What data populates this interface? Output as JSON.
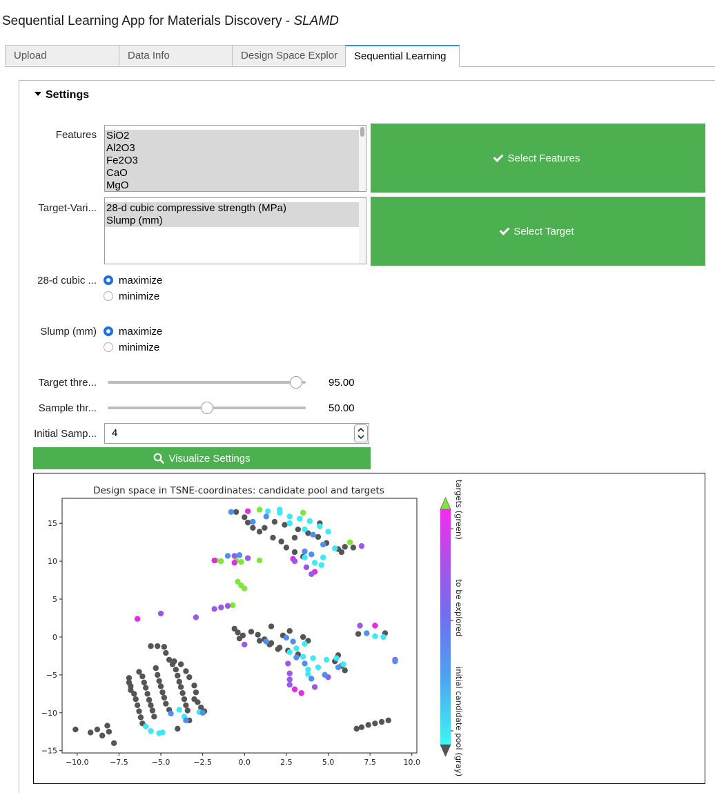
{
  "app": {
    "title": "Sequential Learning App for Materials Discovery - ",
    "title_italic": "SLAMD"
  },
  "tabs": [
    {
      "label": "Upload"
    },
    {
      "label": "Data Info"
    },
    {
      "label": "Design Space Explor"
    },
    {
      "label": "Sequential Learning"
    }
  ],
  "settings": {
    "header": "Settings",
    "features_label": "Features",
    "features_options": [
      "SiO2",
      "Al2O3",
      "Fe2O3",
      "CaO",
      "MgO"
    ],
    "select_features_button": "Select Features",
    "target_label": "Target-Vari...",
    "target_options": [
      "28-d cubic compressive strength (MPa)",
      "Slump (mm)"
    ],
    "select_target_button": "Select Target",
    "objective1_label": "28-d cubic ...",
    "objective2_label": "Slump (mm)",
    "maximize": "maximize",
    "minimize": "minimize",
    "target_threshold_label": "Target thre...",
    "target_threshold_value": "95.00",
    "target_threshold_level": 0.95,
    "sample_threshold_label": "Sample thr...",
    "sample_threshold_value": "50.00",
    "sample_threshold_level": 0.5,
    "initial_samples_label": "Initial Samp...",
    "initial_samples_value": "4",
    "visualize_button": "Visualize Settings",
    "accent_green": "#4caf50",
    "radio_blue": "#1e6fe0"
  },
  "chart_data": {
    "type": "scatter",
    "title": "Design space in TSNE-coordinates: candidate pool and targets",
    "xlabel": "",
    "ylabel": "",
    "xlim": [
      -10.9,
      10.3
    ],
    "ylim": [
      -15.3,
      18.3
    ],
    "xticks": [
      "−10.0",
      "−7.5",
      "−5.0",
      "−2.5",
      "0.0",
      "2.5",
      "5.0",
      "7.5",
      "10.0"
    ],
    "xtick_values": [
      -10,
      -7.5,
      -5,
      -2.5,
      0,
      2.5,
      5,
      7.5,
      10
    ],
    "yticks": [
      "15",
      "10",
      "5",
      "0",
      "−5",
      "−10",
      "−15"
    ],
    "ytick_values": [
      15,
      10,
      5,
      0,
      -5,
      -10,
      -15
    ],
    "colorbar_labels": [
      "targets (green)",
      "to be explored",
      "initial candidate pool (gray)"
    ],
    "colors": {
      "gray": "#555555",
      "green": "#7fe63a",
      "magenta": "#e629e6",
      "purple": "#9b59e8",
      "blue": "#4f8ff0",
      "cyan": "#3ee8f5"
    },
    "gray_points": [
      [
        -10.1,
        -12.2
      ],
      [
        -9.2,
        -12.6
      ],
      [
        -8.8,
        -12.2
      ],
      [
        -8.5,
        -13.0
      ],
      [
        -8.2,
        -11.7
      ],
      [
        -8.1,
        -12.5
      ],
      [
        -7.8,
        -14.0
      ],
      [
        -6.9,
        -5.4
      ],
      [
        -6.9,
        -6.0
      ],
      [
        -6.8,
        -6.5
      ],
      [
        -6.8,
        -7.0
      ],
      [
        -6.6,
        -7.5
      ],
      [
        -6.5,
        -8.2
      ],
      [
        -6.4,
        -9.0
      ],
      [
        -6.3,
        -9.8
      ],
      [
        -6.2,
        -10.6
      ],
      [
        -6.1,
        -11.4
      ],
      [
        -6.3,
        -4.6
      ],
      [
        -6.1,
        -5.2
      ],
      [
        -6.0,
        -6.0
      ],
      [
        -5.9,
        -6.7
      ],
      [
        -5.8,
        -7.5
      ],
      [
        -5.7,
        -8.3
      ],
      [
        -5.6,
        -9.0
      ],
      [
        -5.5,
        -9.7
      ],
      [
        -5.4,
        -10.5
      ],
      [
        -5.6,
        -1.2
      ],
      [
        -5.2,
        -1.2
      ],
      [
        -4.8,
        -1.3
      ],
      [
        -5.3,
        -4.1
      ],
      [
        -5.2,
        -5.0
      ],
      [
        -5.1,
        -5.8
      ],
      [
        -5.0,
        -6.5
      ],
      [
        -4.9,
        -7.3
      ],
      [
        -4.8,
        -8.0
      ],
      [
        -4.7,
        -8.8
      ],
      [
        -4.5,
        -9.6
      ],
      [
        -4.7,
        -2.1
      ],
      [
        -4.5,
        -3.0
      ],
      [
        -4.3,
        -3.6
      ],
      [
        -4.1,
        -4.3
      ],
      [
        -4.0,
        -5.1
      ],
      [
        -3.9,
        -5.9
      ],
      [
        -3.8,
        -6.6
      ],
      [
        -3.7,
        -7.4
      ],
      [
        -3.6,
        -8.2
      ],
      [
        -3.5,
        -9.0
      ],
      [
        -3.4,
        -9.7
      ],
      [
        -4.2,
        -3.2
      ],
      [
        -3.8,
        -3.6
      ],
      [
        -3.5,
        -4.5
      ],
      [
        -3.3,
        -5.3
      ],
      [
        -3.0,
        -6.4
      ],
      [
        -2.9,
        -7.3
      ],
      [
        -3.0,
        -8.2
      ],
      [
        -2.8,
        -8.6
      ],
      [
        -2.6,
        -9.3
      ],
      [
        -2.4,
        -9.8
      ],
      [
        -4.0,
        -12.1
      ],
      [
        -3.3,
        -11.0
      ],
      [
        -0.5,
        16.5
      ],
      [
        0.0,
        15.8
      ],
      [
        0.2,
        15.1
      ],
      [
        0.5,
        14.4
      ],
      [
        0.9,
        13.9
      ],
      [
        1.2,
        14.4
      ],
      [
        1.7,
        13.1
      ],
      [
        2.2,
        12.6
      ],
      [
        2.5,
        11.8
      ],
      [
        3.0,
        11.2
      ],
      [
        3.5,
        10.6
      ],
      [
        1.8,
        15.2
      ],
      [
        2.4,
        14.8
      ],
      [
        3.2,
        14.2
      ],
      [
        3.8,
        13.7
      ],
      [
        4.4,
        13.2
      ],
      [
        4.9,
        12.4
      ],
      [
        5.6,
        11.6
      ],
      [
        5.8,
        11.2
      ],
      [
        6.0,
        11.9
      ],
      [
        6.5,
        11.8
      ],
      [
        3.0,
        13.1
      ],
      [
        4.5,
        15.0
      ],
      [
        -0.6,
        1.1
      ],
      [
        -0.4,
        0.6
      ],
      [
        -0.1,
        0.2
      ],
      [
        -0.3,
        -0.2
      ],
      [
        0.4,
        0.7
      ],
      [
        0.8,
        0.3
      ],
      [
        1.2,
        -0.3
      ],
      [
        1.6,
        -0.8
      ],
      [
        2.1,
        -1.4
      ],
      [
        2.6,
        -1.8
      ],
      [
        3.2,
        -2.3
      ],
      [
        0.9,
        -0.5
      ],
      [
        1.5,
        -1.0
      ],
      [
        2.0,
        -1.6
      ],
      [
        1.6,
        1.4
      ],
      [
        2.3,
        0.2
      ],
      [
        2.7,
        0.8
      ],
      [
        3.5,
        0.0
      ],
      [
        3.8,
        -0.5
      ],
      [
        5.6,
        -2.4
      ],
      [
        5.4,
        -3.2
      ],
      [
        5.8,
        -3.8
      ],
      [
        6.0,
        -4.4
      ],
      [
        6.8,
        0.4
      ],
      [
        8.4,
        0.5
      ],
      [
        6.7,
        -12.1
      ],
      [
        7.0,
        -11.9
      ],
      [
        7.4,
        -11.6
      ],
      [
        7.8,
        -11.4
      ],
      [
        8.2,
        -11.2
      ],
      [
        8.6,
        -11.0
      ]
    ],
    "colored_points": [
      [
        0.2,
        16.6,
        "magenta"
      ],
      [
        0.9,
        16.8,
        "green"
      ],
      [
        3.5,
        16.4,
        "green"
      ],
      [
        6.3,
        12.5,
        "green"
      ],
      [
        -1.7,
        10.1,
        "green"
      ],
      [
        -1.4,
        10.0,
        "green"
      ],
      [
        -0.5,
        10.1,
        "green"
      ],
      [
        -0.2,
        9.9,
        "green"
      ],
      [
        0.9,
        10.1,
        "green"
      ],
      [
        -0.4,
        7.3,
        "green"
      ],
      [
        -0.2,
        6.8,
        "green"
      ],
      [
        0.0,
        6.4,
        "green"
      ],
      [
        -0.7,
        4.2,
        "green"
      ],
      [
        -1.8,
        10.1,
        "magenta"
      ],
      [
        -0.6,
        9.8,
        "magenta"
      ],
      [
        2.9,
        10.3,
        "magenta"
      ],
      [
        4.2,
        8.6,
        "magenta"
      ],
      [
        -6.4,
        2.4,
        "magenta"
      ],
      [
        -5.0,
        3.1,
        "purple"
      ],
      [
        -2.9,
        2.6,
        "purple"
      ],
      [
        -1.8,
        3.7,
        "purple"
      ],
      [
        -1.4,
        3.9,
        "purple"
      ],
      [
        -1.0,
        4.1,
        "purple"
      ],
      [
        -0.6,
        10.7,
        "purple"
      ],
      [
        0.2,
        10.4,
        "purple"
      ],
      [
        3.0,
        10.0,
        "purple"
      ],
      [
        3.7,
        9.2,
        "purple"
      ],
      [
        4.0,
        8.3,
        "purple"
      ],
      [
        6.9,
        1.5,
        "purple"
      ],
      [
        7.8,
        1.5,
        "magenta"
      ],
      [
        9.0,
        -3.0,
        "purple"
      ],
      [
        7.0,
        12.0,
        "purple"
      ],
      [
        3.4,
        -7.4,
        "magenta"
      ],
      [
        3.0,
        -6.9,
        "magenta"
      ],
      [
        5.0,
        -5.3,
        "purple"
      ],
      [
        4.2,
        -6.6,
        "purple"
      ],
      [
        0.0,
        -1.0,
        "purple"
      ],
      [
        1.3,
        -0.6,
        "blue"
      ],
      [
        2.5,
        -0.1,
        "blue"
      ],
      [
        2.9,
        -0.6,
        "blue"
      ],
      [
        2.6,
        -3.5,
        "purple"
      ],
      [
        2.7,
        -4.8,
        "purple"
      ],
      [
        2.7,
        -5.6,
        "purple"
      ],
      [
        2.7,
        -6.3,
        "purple"
      ],
      [
        0.5,
        15.2,
        "blue"
      ],
      [
        1.4,
        16.6,
        "cyan"
      ],
      [
        2.1,
        16.4,
        "cyan"
      ],
      [
        2.7,
        15.9,
        "cyan"
      ],
      [
        3.3,
        15.6,
        "cyan"
      ],
      [
        3.9,
        15.3,
        "cyan"
      ],
      [
        4.5,
        14.6,
        "cyan"
      ],
      [
        5.0,
        13.9,
        "cyan"
      ],
      [
        1.3,
        15.9,
        "blue"
      ],
      [
        2.1,
        16.8,
        "cyan"
      ],
      [
        -0.8,
        16.5,
        "blue"
      ],
      [
        2.7,
        15.0,
        "cyan"
      ],
      [
        3.6,
        14.2,
        "cyan"
      ],
      [
        4.1,
        13.5,
        "blue"
      ],
      [
        4.7,
        12.2,
        "blue"
      ],
      [
        3.6,
        11.3,
        "blue"
      ],
      [
        4.0,
        10.9,
        "blue"
      ],
      [
        4.7,
        10.5,
        "cyan"
      ],
      [
        3.6,
        10.5,
        "cyan"
      ],
      [
        4.2,
        9.8,
        "cyan"
      ],
      [
        4.6,
        9.5,
        "cyan"
      ],
      [
        5.4,
        11.7,
        "cyan"
      ],
      [
        -1.0,
        10.7,
        "blue"
      ],
      [
        -0.3,
        10.8,
        "blue"
      ],
      [
        -5.9,
        -11.8,
        "cyan"
      ],
      [
        -5.6,
        -12.4,
        "cyan"
      ],
      [
        -5.1,
        -12.7,
        "cyan"
      ],
      [
        -4.9,
        -12.6,
        "cyan"
      ],
      [
        -4.4,
        -10.1,
        "blue"
      ],
      [
        -3.9,
        -9.6,
        "cyan"
      ],
      [
        -3.6,
        -10.5,
        "cyan"
      ],
      [
        -3.5,
        -11.0,
        "blue"
      ],
      [
        -2.7,
        -9.9,
        "cyan"
      ],
      [
        -2.5,
        -10.0,
        "blue"
      ],
      [
        2.7,
        -2.0,
        "cyan"
      ],
      [
        3.1,
        -1.5,
        "cyan"
      ],
      [
        3.6,
        -0.9,
        "cyan"
      ],
      [
        4.1,
        -2.8,
        "cyan"
      ],
      [
        4.4,
        -4.0,
        "cyan"
      ],
      [
        4.9,
        -3.0,
        "cyan"
      ],
      [
        3.5,
        -2.6,
        "cyan"
      ],
      [
        3.8,
        -4.3,
        "cyan"
      ],
      [
        3.1,
        -2.7,
        "blue"
      ],
      [
        3.6,
        -3.5,
        "blue"
      ],
      [
        4.0,
        -5.5,
        "blue"
      ],
      [
        4.8,
        -5.0,
        "blue"
      ],
      [
        5.6,
        -4.0,
        "blue"
      ],
      [
        5.9,
        -3.6,
        "cyan"
      ],
      [
        7.3,
        0.5,
        "blue"
      ],
      [
        7.8,
        0.1,
        "cyan"
      ],
      [
        8.3,
        0.0,
        "cyan"
      ],
      [
        9.0,
        -3.2,
        "blue"
      ],
      [
        5.5,
        -2.8,
        "cyan"
      ],
      [
        3.8,
        -4.9,
        "cyan"
      ]
    ]
  }
}
